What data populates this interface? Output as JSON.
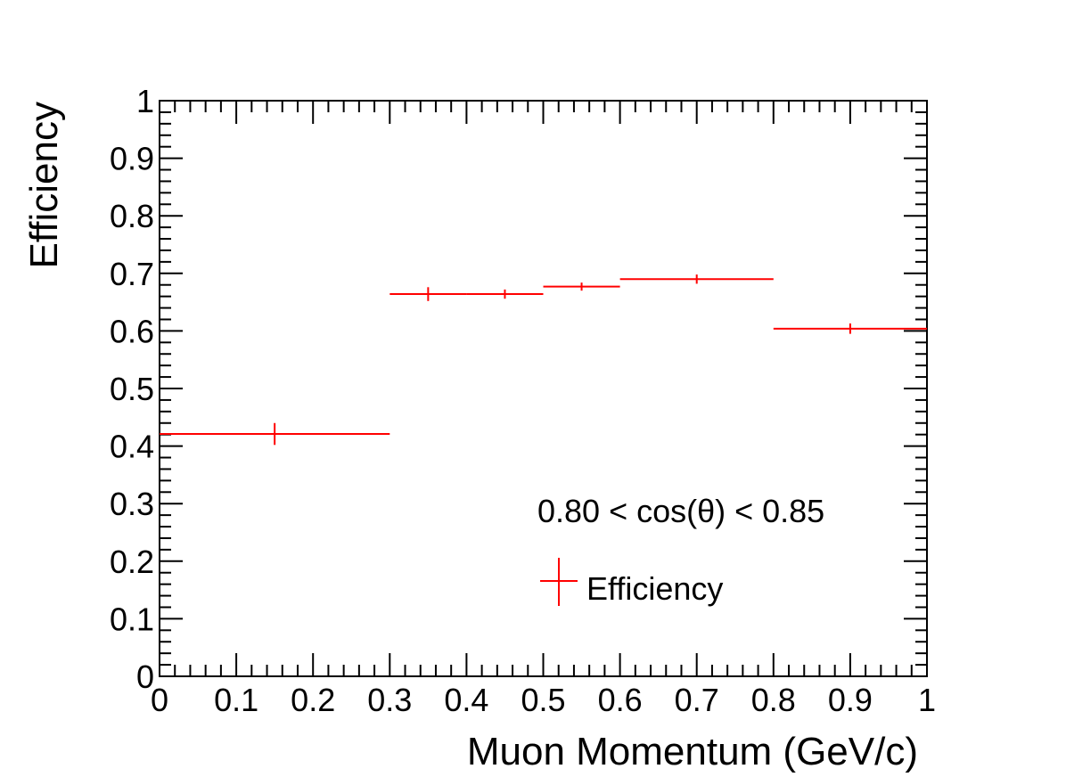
{
  "chart_data": {
    "type": "scatter",
    "title": "",
    "xlabel": "Muon Momentum (GeV/c)",
    "ylabel": "Efficiency",
    "xlim": [
      0,
      1
    ],
    "ylim": [
      0,
      1
    ],
    "x_ticks": [
      "0",
      "0.1",
      "0.2",
      "0.3",
      "0.4",
      "0.5",
      "0.6",
      "0.7",
      "0.8",
      "0.9",
      "1"
    ],
    "y_ticks": [
      "0",
      "0.1",
      "0.2",
      "0.3",
      "0.4",
      "0.5",
      "0.6",
      "0.7",
      "0.8",
      "0.9",
      "1"
    ],
    "grid": false,
    "legend_position": "bottom-right",
    "annotation": "0.80 < cos(θ) < 0.85",
    "series": [
      {
        "name": "Efficiency",
        "color": "#ff0000",
        "points": [
          {
            "x": 0.15,
            "x_low": 0.0,
            "x_high": 0.3,
            "y": 0.421,
            "y_err": 0.019
          },
          {
            "x": 0.35,
            "x_low": 0.3,
            "x_high": 0.4,
            "y": 0.664,
            "y_err": 0.012
          },
          {
            "x": 0.45,
            "x_low": 0.4,
            "x_high": 0.5,
            "y": 0.664,
            "y_err": 0.008
          },
          {
            "x": 0.55,
            "x_low": 0.5,
            "x_high": 0.6,
            "y": 0.677,
            "y_err": 0.007
          },
          {
            "x": 0.7,
            "x_low": 0.6,
            "x_high": 0.8,
            "y": 0.69,
            "y_err": 0.008
          },
          {
            "x": 0.9,
            "x_low": 0.8,
            "x_high": 1.0,
            "y": 0.604,
            "y_err": 0.009
          }
        ]
      }
    ]
  }
}
